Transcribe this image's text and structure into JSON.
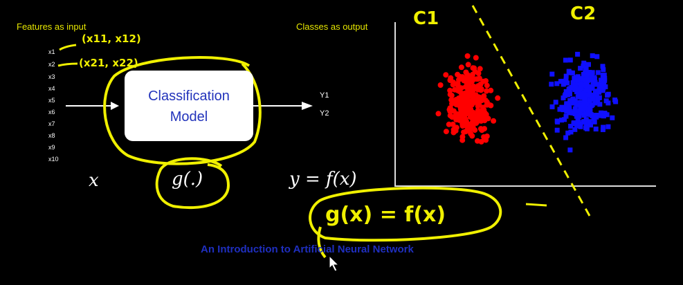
{
  "labels": {
    "features_as_input": "Features as input",
    "classes_as_output": "Classes as output"
  },
  "features": [
    "x1",
    "x2",
    "x3",
    "x4",
    "x5",
    "x6",
    "x7",
    "x8",
    "x9",
    "x10"
  ],
  "model": {
    "line1": "Classification",
    "line2": "Model"
  },
  "outputs": [
    "Y1",
    "Y2"
  ],
  "math": {
    "x": "x",
    "g": "g(.)",
    "y_eq": "y = f(x)"
  },
  "handwriting": {
    "x1_tuple": "(x11, x12)",
    "x2_tuple": "(x21, x22)",
    "c1": "C1",
    "c2": "C2",
    "g_eq_f": "g(x) = f(x)"
  },
  "footer": "An Introduction to Artificial Neural Network",
  "colors": {
    "background": "#000000",
    "highlight": "#f0f000",
    "class1": "#ff0000",
    "class2": "#1010ff",
    "footer": "#1f2fc0"
  },
  "icons": [
    "mouse-cursor-icon"
  ]
}
